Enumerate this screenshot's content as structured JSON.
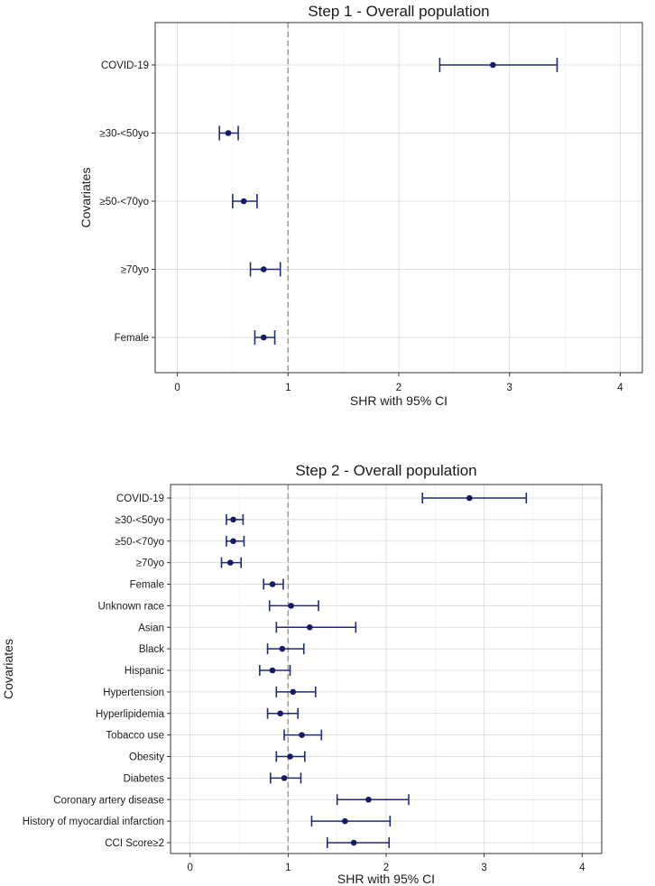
{
  "chart_data": [
    {
      "type": "forest",
      "title": "Step 1 - Overall population",
      "xlabel": "SHR with 95% CI",
      "ylabel": "Covariates",
      "xlim": [
        -0.2,
        4.2
      ],
      "xticks": [
        "0",
        "1",
        "2",
        "3",
        "4"
      ],
      "reference_line": 1,
      "items": [
        {
          "label": "COVID-19",
          "est": 2.85,
          "lo": 2.37,
          "hi": 3.43
        },
        {
          "label": "≥30-<50yo",
          "est": 0.46,
          "lo": 0.38,
          "hi": 0.55
        },
        {
          "label": "≥50-<70yo",
          "est": 0.6,
          "lo": 0.5,
          "hi": 0.72
        },
        {
          "label": "≥70yo",
          "est": 0.78,
          "lo": 0.66,
          "hi": 0.93
        },
        {
          "label": "Female",
          "est": 0.78,
          "lo": 0.7,
          "hi": 0.88
        }
      ]
    },
    {
      "type": "forest",
      "title": "Step 2 - Overall population",
      "xlabel": "SHR with 95% CI",
      "ylabel": "Covariates",
      "xlim": [
        -0.2,
        4.2
      ],
      "xticks": [
        "0",
        "1",
        "2",
        "3",
        "4"
      ],
      "reference_line": 1,
      "items": [
        {
          "label": "COVID-19",
          "est": 2.85,
          "lo": 2.37,
          "hi": 3.43
        },
        {
          "label": "≥30-<50yo",
          "est": 0.44,
          "lo": 0.37,
          "hi": 0.54
        },
        {
          "label": "≥50-<70yo",
          "est": 0.44,
          "lo": 0.37,
          "hi": 0.55
        },
        {
          "label": "≥70yo",
          "est": 0.41,
          "lo": 0.32,
          "hi": 0.52
        },
        {
          "label": "Female",
          "est": 0.84,
          "lo": 0.75,
          "hi": 0.95
        },
        {
          "label": "Unknown race",
          "est": 1.03,
          "lo": 0.81,
          "hi": 1.31
        },
        {
          "label": "Asian",
          "est": 1.22,
          "lo": 0.88,
          "hi": 1.69
        },
        {
          "label": "Black",
          "est": 0.94,
          "lo": 0.79,
          "hi": 1.16
        },
        {
          "label": "Hispanic",
          "est": 0.84,
          "lo": 0.71,
          "hi": 1.02
        },
        {
          "label": "Hypertension",
          "est": 1.05,
          "lo": 0.88,
          "hi": 1.28
        },
        {
          "label": "Hyperlipidemia",
          "est": 0.92,
          "lo": 0.79,
          "hi": 1.1
        },
        {
          "label": "Tobacco use",
          "est": 1.14,
          "lo": 0.96,
          "hi": 1.34
        },
        {
          "label": "Obesity",
          "est": 1.02,
          "lo": 0.88,
          "hi": 1.17
        },
        {
          "label": "Diabetes",
          "est": 0.96,
          "lo": 0.82,
          "hi": 1.13
        },
        {
          "label": "Coronary artery disease",
          "est": 1.82,
          "lo": 1.5,
          "hi": 2.23
        },
        {
          "label": "History of myocardial infarction",
          "est": 1.58,
          "lo": 1.24,
          "hi": 2.04
        },
        {
          "label": "CCI Score≥2",
          "est": 1.67,
          "lo": 1.4,
          "hi": 2.03
        }
      ]
    }
  ]
}
